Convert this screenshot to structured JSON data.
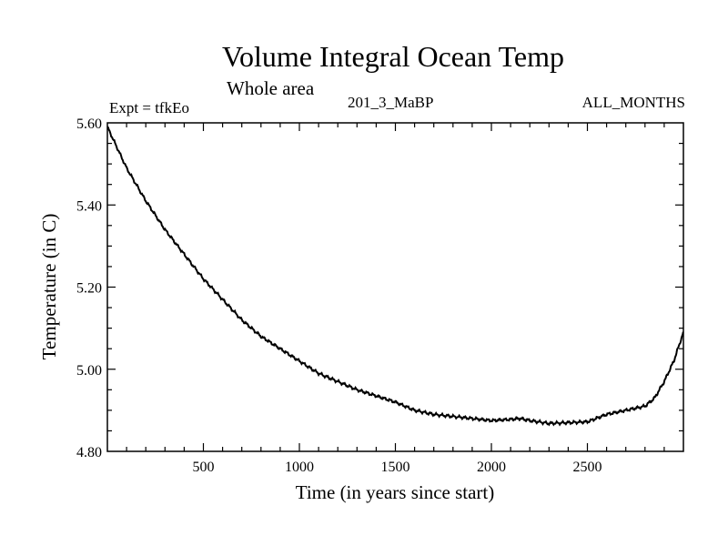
{
  "chart_data": {
    "type": "line",
    "title": "Volume Integral Ocean Temp",
    "subtitle": "Whole area",
    "annotations": {
      "experiment": "Expt = tfkEo",
      "run": "201_3_MaBP",
      "period": "ALL_MONTHS"
    },
    "xlabel": "Time (in years since start)",
    "ylabel": "Temperature (in C)",
    "xlim": [
      0,
      3000
    ],
    "ylim": [
      4.8,
      5.6
    ],
    "x_ticks": [
      500,
      1000,
      1500,
      2000,
      2500
    ],
    "x_tick_labels": [
      "500",
      "1000",
      "1500",
      "2000",
      "2500"
    ],
    "y_ticks": [
      4.8,
      5.0,
      5.2,
      5.4,
      5.6
    ],
    "y_tick_labels": [
      "4.80",
      "5.00",
      "5.20",
      "5.40",
      "5.60"
    ],
    "grid": false,
    "series": [
      {
        "color": "#000000",
        "x": [
          0,
          100,
          200,
          300,
          400,
          500,
          600,
          700,
          800,
          900,
          1000,
          1100,
          1200,
          1300,
          1400,
          1500,
          1600,
          1700,
          1800,
          1900,
          2000,
          2100,
          2150,
          2200,
          2300,
          2400,
          2500,
          2600,
          2700,
          2800,
          2850,
          2900,
          2950,
          3000
        ],
        "y": [
          5.59,
          5.49,
          5.41,
          5.34,
          5.28,
          5.22,
          5.17,
          5.12,
          5.08,
          5.05,
          5.02,
          4.99,
          4.97,
          4.95,
          4.935,
          4.92,
          4.9,
          4.89,
          4.885,
          4.88,
          4.875,
          4.878,
          4.88,
          4.875,
          4.868,
          4.87,
          4.872,
          4.89,
          4.9,
          4.91,
          4.93,
          4.97,
          5.02,
          5.09
        ]
      }
    ]
  }
}
